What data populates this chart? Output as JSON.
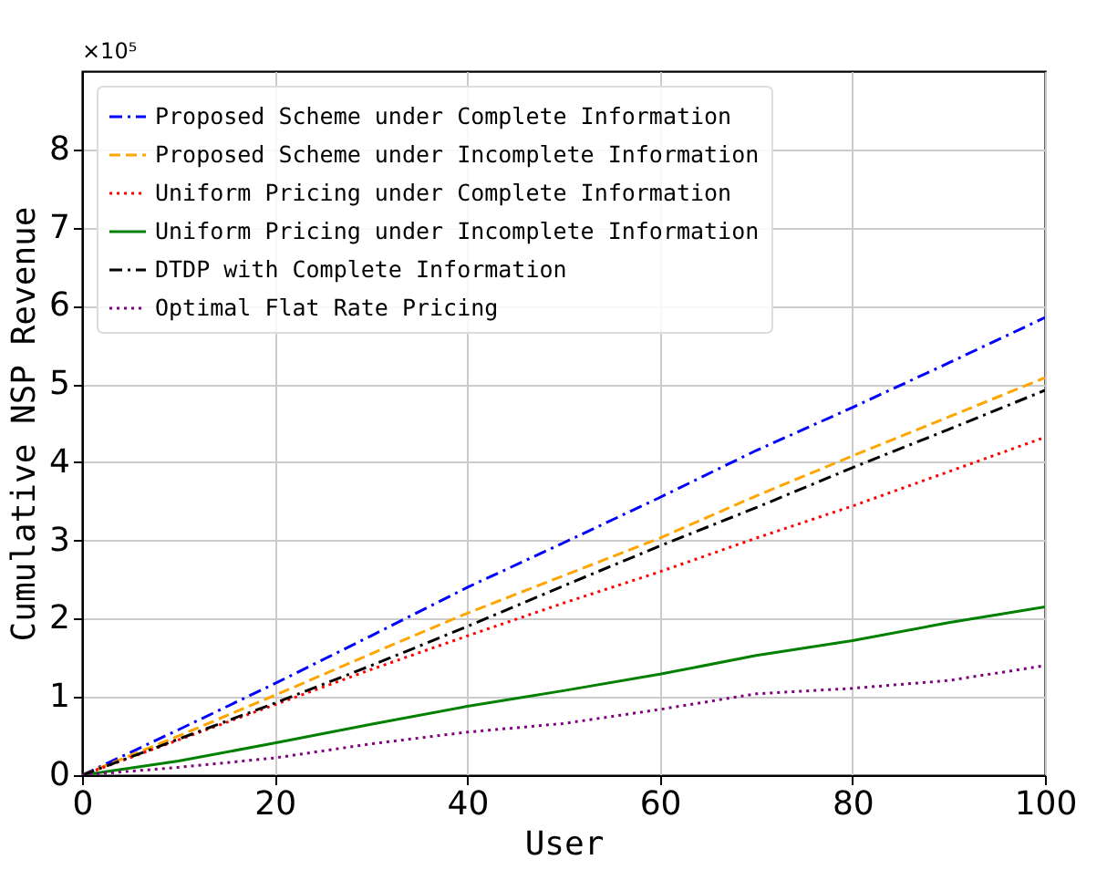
{
  "chart_data": {
    "type": "line",
    "xlabel": "User",
    "ylabel": "Cumulative NSP Revenue",
    "annotations": [
      "×10⁵"
    ],
    "x": [
      0,
      10,
      20,
      30,
      40,
      50,
      60,
      70,
      80,
      90,
      100
    ],
    "series": [
      {
        "name": "Proposed Scheme under Complete Information",
        "color": "#0000ff",
        "line_style": "dashdot",
        "values": [
          0,
          0.58,
          1.17,
          1.78,
          2.4,
          2.97,
          3.55,
          4.15,
          4.7,
          5.27,
          5.85
        ]
      },
      {
        "name": "Proposed Scheme under Incomplete Information",
        "color": "#ffa500",
        "line_style": "dashed",
        "values": [
          0,
          0.5,
          1.02,
          1.55,
          2.07,
          2.55,
          3.03,
          3.57,
          4.08,
          4.58,
          5.08
        ]
      },
      {
        "name": "Uniform Pricing under Complete Information",
        "color": "#ff0000",
        "line_style": "dotted",
        "values": [
          0,
          0.45,
          0.9,
          1.35,
          1.78,
          2.2,
          2.6,
          3.03,
          3.44,
          3.88,
          4.32
        ]
      },
      {
        "name": "Uniform Pricing under Incomplete Information",
        "color": "#008000",
        "line_style": "solid",
        "values": [
          0,
          0.18,
          0.41,
          0.65,
          0.88,
          1.08,
          1.29,
          1.53,
          1.72,
          1.95,
          2.15
        ]
      },
      {
        "name": "DTDP with Complete Information",
        "color": "#000000",
        "line_style": "dashdot",
        "values": [
          0,
          0.46,
          0.92,
          1.4,
          1.9,
          2.42,
          2.93,
          3.42,
          3.93,
          4.42,
          4.92
        ]
      },
      {
        "name": "Optimal Flat Rate Pricing",
        "color": "#800080",
        "line_style": "dotted",
        "values": [
          0,
          0.1,
          0.22,
          0.4,
          0.55,
          0.66,
          0.84,
          1.04,
          1.11,
          1.21,
          1.4
        ]
      }
    ],
    "xlim": [
      0,
      100
    ],
    "xticks": [
      0,
      20,
      40,
      60,
      80,
      100
    ],
    "ylim": [
      0,
      9
    ],
    "yticks": [
      0,
      1,
      2,
      3,
      4,
      5,
      6,
      7,
      8
    ],
    "grid": true,
    "legend": "top left"
  }
}
